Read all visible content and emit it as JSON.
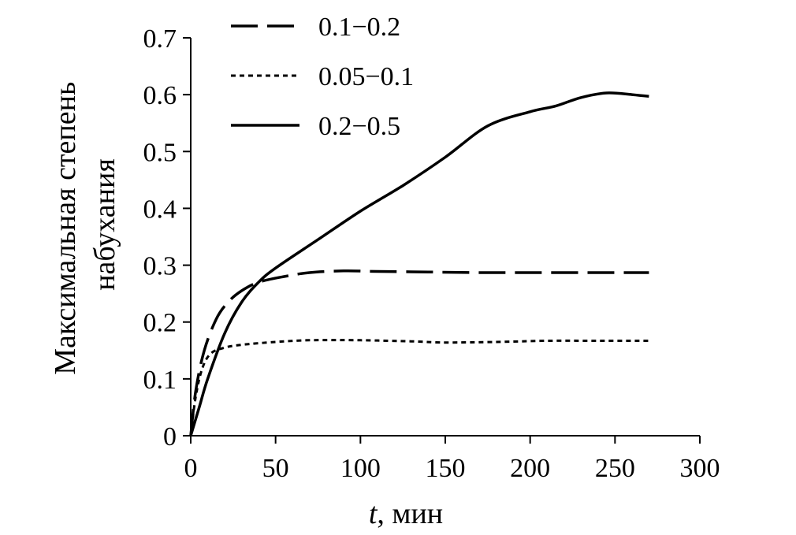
{
  "chart_data": {
    "type": "line",
    "title": "",
    "xlabel": "мин",
    "xlabel_var": "t",
    "xlabel_sep": ", ",
    "ylabel_lines": [
      "Максимальная степень",
      "набухания"
    ],
    "xlim": [
      0,
      300
    ],
    "ylim": [
      0,
      0.7
    ],
    "xticks": [
      0,
      50,
      100,
      150,
      200,
      250,
      300
    ],
    "yticks": [
      0,
      0.1,
      0.2,
      0.3,
      0.4,
      0.5,
      0.6,
      0.7
    ],
    "grid": false,
    "legend_position": "top-left",
    "series": [
      {
        "name": "0.1−0.2",
        "style": "dashed",
        "points": [
          [
            0,
            0
          ],
          [
            3,
            0.08
          ],
          [
            8,
            0.15
          ],
          [
            15,
            0.205
          ],
          [
            22,
            0.235
          ],
          [
            30,
            0.255
          ],
          [
            40,
            0.27
          ],
          [
            55,
            0.28
          ],
          [
            70,
            0.287
          ],
          [
            90,
            0.29
          ],
          [
            110,
            0.289
          ],
          [
            140,
            0.288
          ],
          [
            170,
            0.287
          ],
          [
            200,
            0.287
          ],
          [
            240,
            0.287
          ],
          [
            270,
            0.287
          ]
        ]
      },
      {
        "name": "0.05−0.1",
        "style": "dotted",
        "points": [
          [
            0,
            0
          ],
          [
            3,
            0.07
          ],
          [
            7,
            0.12
          ],
          [
            12,
            0.145
          ],
          [
            20,
            0.155
          ],
          [
            30,
            0.16
          ],
          [
            50,
            0.165
          ],
          [
            70,
            0.168
          ],
          [
            100,
            0.168
          ],
          [
            130,
            0.166
          ],
          [
            150,
            0.164
          ],
          [
            180,
            0.165
          ],
          [
            210,
            0.167
          ],
          [
            240,
            0.167
          ],
          [
            270,
            0.167
          ]
        ]
      },
      {
        "name": "0.2−0.5",
        "style": "solid",
        "points": [
          [
            0,
            0
          ],
          [
            5,
            0.05
          ],
          [
            10,
            0.1
          ],
          [
            20,
            0.18
          ],
          [
            30,
            0.235
          ],
          [
            40,
            0.27
          ],
          [
            50,
            0.295
          ],
          [
            75,
            0.345
          ],
          [
            100,
            0.395
          ],
          [
            125,
            0.44
          ],
          [
            150,
            0.49
          ],
          [
            175,
            0.545
          ],
          [
            200,
            0.57
          ],
          [
            215,
            0.58
          ],
          [
            230,
            0.595
          ],
          [
            245,
            0.603
          ],
          [
            260,
            0.6
          ],
          [
            270,
            0.597
          ]
        ]
      }
    ]
  }
}
